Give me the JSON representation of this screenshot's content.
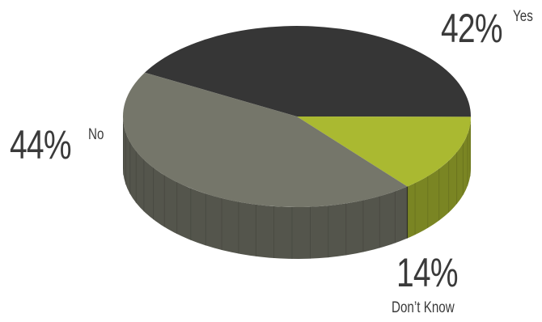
{
  "chart_data": {
    "type": "pie",
    "style": "3d",
    "slices": [
      {
        "label": "Yes",
        "value": 42,
        "display": "42%",
        "color": "#363636"
      },
      {
        "label": "Don’t Know",
        "value": 14,
        "display": "14%",
        "color": "#aab931"
      },
      {
        "label": "No",
        "value": 44,
        "display": "44%",
        "color": "#75766a"
      }
    ]
  }
}
